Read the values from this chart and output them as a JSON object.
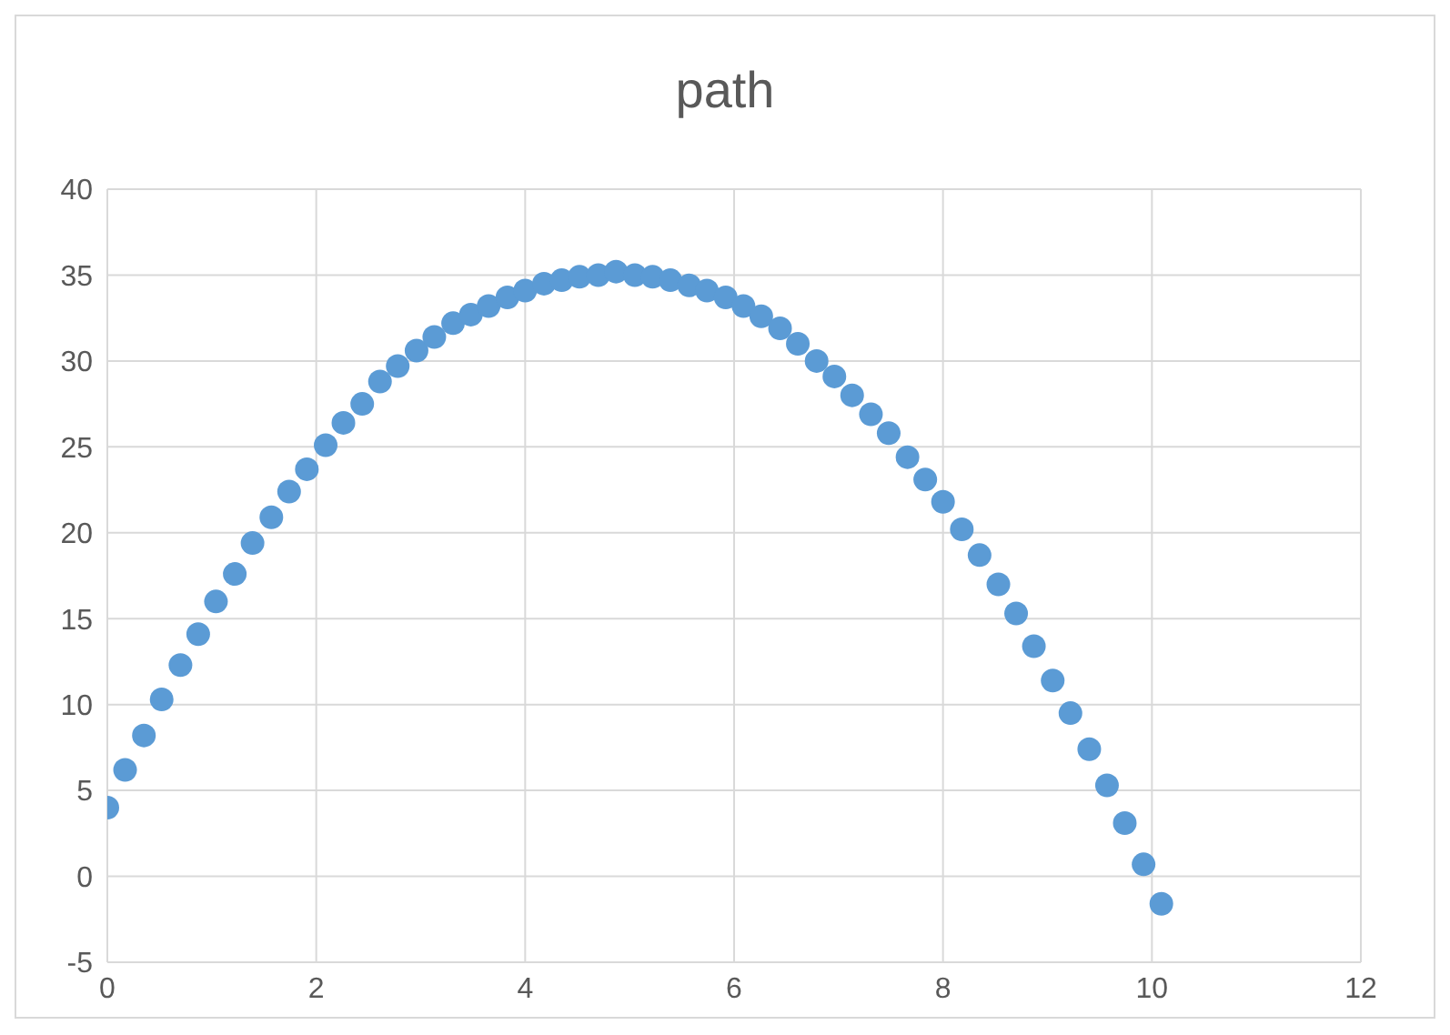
{
  "chart_data": {
    "type": "scatter",
    "title": "path",
    "x": [
      0,
      0.17,
      0.35,
      0.52,
      0.7,
      0.87,
      1.04,
      1.22,
      1.39,
      1.57,
      1.74,
      1.91,
      2.09,
      2.26,
      2.44,
      2.61,
      2.78,
      2.96,
      3.13,
      3.31,
      3.48,
      3.65,
      3.83,
      4.0,
      4.18,
      4.35,
      4.52,
      4.7,
      4.87,
      5.05,
      5.22,
      5.39,
      5.57,
      5.74,
      5.92,
      6.09,
      6.26,
      6.44,
      6.61,
      6.79,
      6.96,
      7.13,
      7.31,
      7.48,
      7.66,
      7.83,
      8.0,
      8.18,
      8.35,
      8.53,
      8.7,
      8.87,
      9.05,
      9.22,
      9.4,
      9.57,
      9.74,
      9.92,
      10.09
    ],
    "series": [
      {
        "color": "#5b9bd5",
        "values": [
          4.0,
          6.2,
          8.2,
          10.3,
          12.3,
          14.1,
          16.0,
          17.6,
          19.4,
          20.9,
          22.4,
          23.7,
          25.1,
          26.4,
          27.5,
          28.8,
          29.7,
          30.6,
          31.4,
          32.2,
          32.7,
          33.2,
          33.7,
          34.1,
          34.5,
          34.7,
          34.9,
          35.0,
          35.2,
          35.0,
          34.9,
          34.7,
          34.4,
          34.1,
          33.7,
          33.2,
          32.6,
          31.9,
          31.0,
          30.0,
          29.1,
          28.0,
          26.9,
          25.8,
          24.4,
          23.1,
          21.8,
          20.2,
          18.7,
          17.0,
          15.3,
          13.4,
          11.4,
          9.5,
          7.4,
          5.3,
          3.1,
          0.7,
          -1.6
        ]
      }
    ],
    "xlim": [
      0,
      12
    ],
    "xticks": [
      0,
      2,
      4,
      6,
      8,
      10,
      12
    ],
    "ylim": [
      -5,
      40
    ],
    "yticks": [
      -5,
      0,
      5,
      10,
      15,
      20,
      25,
      30,
      35,
      40
    ],
    "grid": true,
    "marker": "circle"
  }
}
